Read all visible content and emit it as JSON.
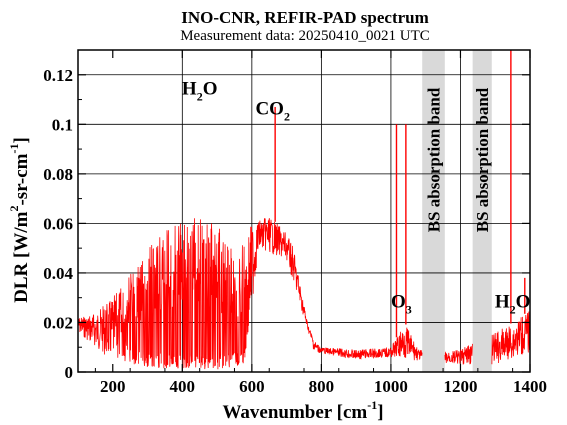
{
  "chart_data": {
    "type": "line",
    "title": "INO-CNR, REFIR-PAD spectrum",
    "subtitle": "Measurement data: 20250410_0021 UTC",
    "xlabel": "Wavenumber [cm-1]",
    "ylabel": "DLR [W/m2-sr-cm-1]",
    "xlim": [
      100,
      1400
    ],
    "ylim": [
      0,
      0.13
    ],
    "xticks": [
      200,
      400,
      600,
      800,
      1000,
      1200,
      1400
    ],
    "yticks": [
      0,
      0.02,
      0.04,
      0.06,
      0.08,
      0.1,
      0.12
    ],
    "line_color": "#ff0000",
    "grid": true,
    "grid_x": [
      400,
      600,
      800,
      1000,
      1200
    ],
    "grid_y": [
      0.02,
      0.04,
      0.06,
      0.08,
      0.1,
      0.12
    ],
    "bands": [
      {
        "label": "BS absorption band",
        "x": [
          1090,
          1155
        ],
        "color": "#d9d9d9"
      },
      {
        "label": "BS absorption band",
        "x": [
          1235,
          1290
        ],
        "color": "#d9d9d9"
      }
    ],
    "annotations": [
      {
        "base": "H",
        "sub": "2",
        "post": "O",
        "x": 450,
        "y": 0.112
      },
      {
        "base": "CO",
        "sub": "2",
        "post": "",
        "x": 660,
        "y": 0.104
      },
      {
        "base": "O",
        "sub": "3",
        "post": "",
        "x": 1030,
        "y": 0.026
      },
      {
        "base": "H",
        "sub": "2",
        "post": "O",
        "x": 1350,
        "y": 0.026
      }
    ],
    "envelope": [
      {
        "x": 100,
        "y": 0.022
      },
      {
        "x": 150,
        "y": 0.024
      },
      {
        "x": 200,
        "y": 0.03
      },
      {
        "x": 250,
        "y": 0.04
      },
      {
        "x": 300,
        "y": 0.05
      },
      {
        "x": 350,
        "y": 0.057
      },
      {
        "x": 400,
        "y": 0.063
      },
      {
        "x": 450,
        "y": 0.063
      },
      {
        "x": 500,
        "y": 0.06
      },
      {
        "x": 550,
        "y": 0.048
      },
      {
        "x": 600,
        "y": 0.06
      },
      {
        "x": 650,
        "y": 0.063
      },
      {
        "x": 700,
        "y": 0.056
      },
      {
        "x": 720,
        "y": 0.05
      },
      {
        "x": 740,
        "y": 0.035
      },
      {
        "x": 760,
        "y": 0.02
      },
      {
        "x": 780,
        "y": 0.013
      },
      {
        "x": 800,
        "y": 0.01
      },
      {
        "x": 900,
        "y": 0.009
      },
      {
        "x": 1000,
        "y": 0.01
      },
      {
        "x": 1040,
        "y": 0.02
      },
      {
        "x": 1080,
        "y": 0.009
      },
      {
        "x": 1150,
        "y": 0.008
      },
      {
        "x": 1200,
        "y": 0.009
      },
      {
        "x": 1235,
        "y": 0.012
      },
      {
        "x": 1290,
        "y": 0.015
      },
      {
        "x": 1350,
        "y": 0.02
      },
      {
        "x": 1400,
        "y": 0.025
      }
    ],
    "floor": [
      {
        "x": 100,
        "y": 0.016
      },
      {
        "x": 200,
        "y": 0.004
      },
      {
        "x": 300,
        "y": 0.002
      },
      {
        "x": 400,
        "y": 0.001
      },
      {
        "x": 500,
        "y": 0.001
      },
      {
        "x": 580,
        "y": 0.003
      },
      {
        "x": 620,
        "y": 0.05
      },
      {
        "x": 700,
        "y": 0.045
      },
      {
        "x": 780,
        "y": 0.008
      },
      {
        "x": 900,
        "y": 0.005
      },
      {
        "x": 1000,
        "y": 0.006
      },
      {
        "x": 1100,
        "y": 0.004
      },
      {
        "x": 1200,
        "y": 0.003
      },
      {
        "x": 1300,
        "y": 0.003
      },
      {
        "x": 1400,
        "y": 0.008
      }
    ],
    "spikes": [
      {
        "x": 667,
        "y": 0.107
      },
      {
        "x": 1016,
        "y": 0.1
      },
      {
        "x": 1043,
        "y": 0.1
      },
      {
        "x": 1345,
        "y": 0.13
      },
      {
        "x": 1385,
        "y": 0.038
      }
    ]
  }
}
